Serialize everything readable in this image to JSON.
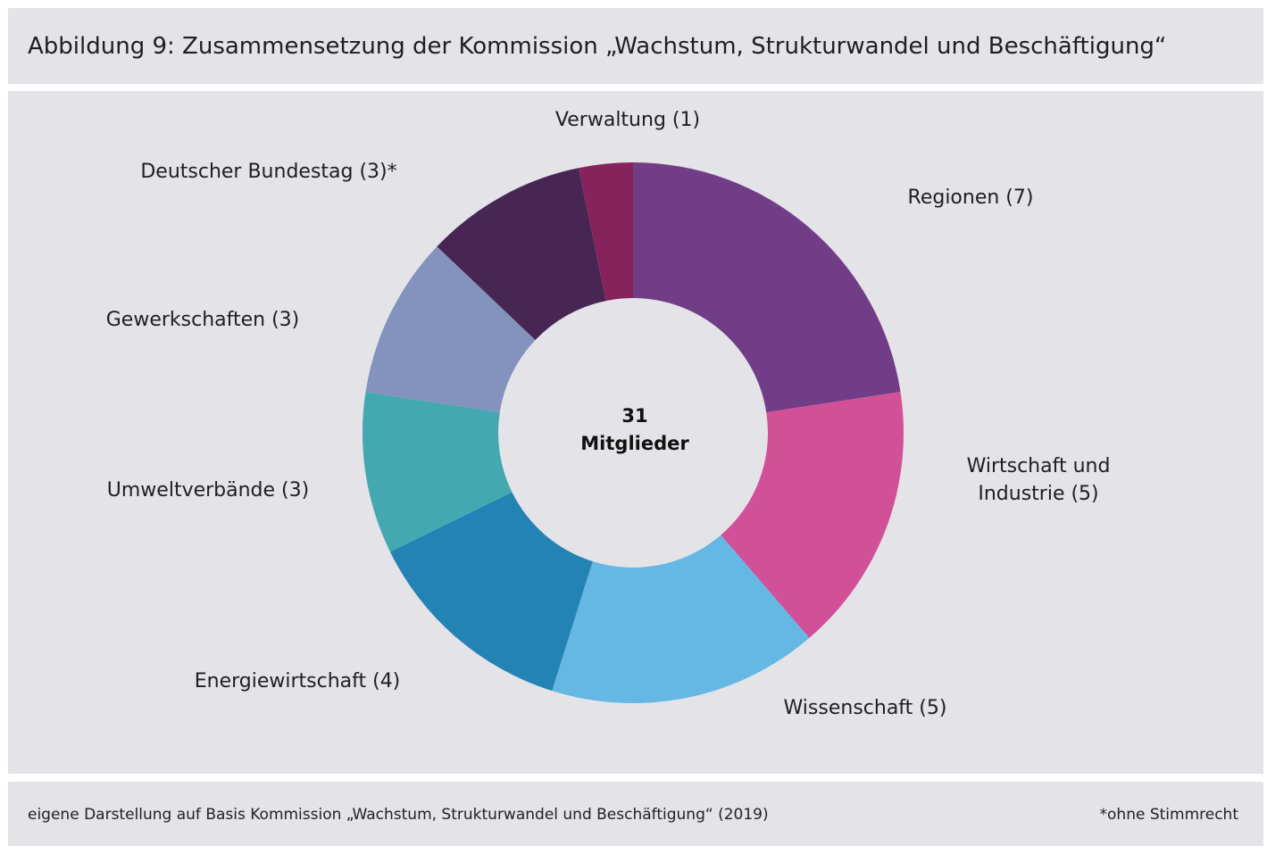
{
  "title": "Abbildung 9: Zusammensetzung der Kommission „Wachstum, Strukturwandel und Beschäftigung“",
  "chart_data": {
    "type": "pie",
    "style": "donut",
    "center_label": [
      "31",
      "Mitglieder"
    ],
    "slices": [
      {
        "label": [
          "Regionen (7)"
        ],
        "value": 7,
        "color": "#723d87"
      },
      {
        "label": [
          "Wirtschaft und",
          "Industrie (5)"
        ],
        "value": 5,
        "color": "#d25097"
      },
      {
        "label": [
          "Wissenschaft (5)"
        ],
        "value": 5,
        "color": "#65b8e4"
      },
      {
        "label": [
          "Energiewirtschaft (4)"
        ],
        "value": 4,
        "color": "#2383b5"
      },
      {
        "label": [
          "Umweltverbände (3)"
        ],
        "value": 3,
        "color": "#43a8b0"
      },
      {
        "label": [
          "Gewerkschaften (3)"
        ],
        "value": 3,
        "color": "#8493bd"
      },
      {
        "label": [
          "Deutscher Bundestag (3)*"
        ],
        "value": 3,
        "color": "#472653"
      },
      {
        "label": [
          "Verwaltung (1)"
        ],
        "value": 1,
        "color": "#86235d"
      }
    ]
  },
  "footer": {
    "source": "eigene Darstellung auf Basis Kommission „Wachstum, Strukturwandel und Beschäftigung“ (2019)",
    "note": "*ohne Stimmrecht"
  }
}
